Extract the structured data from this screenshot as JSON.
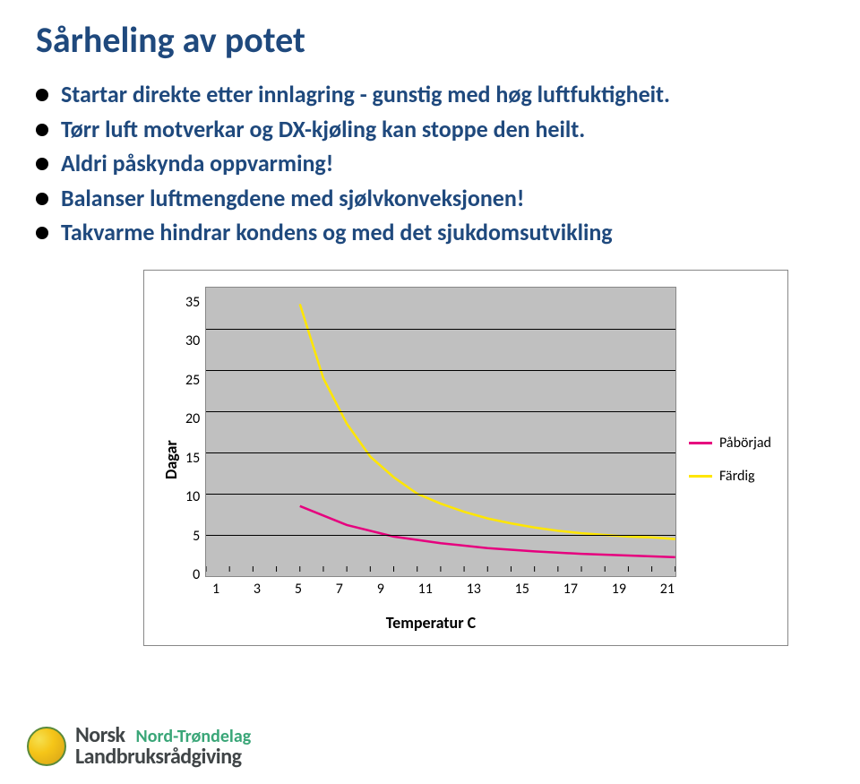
{
  "title": "Sårheling av potet",
  "bullets": [
    "Startar direkte etter innlagring - gunstig med høg luftfuktigheit.",
    "Tørr luft motverkar og DX-kjøling kan stoppe den heilt.",
    "Aldri påskynda oppvarming!",
    "Balanser luftmengdene med sjølvkonveksjonen!",
    "Takvarme hindrar kondens og med det sjukdomsutvikling"
  ],
  "chart": {
    "type": "line",
    "ylabel": "Dagar",
    "xlabel": "Temperatur C",
    "yticks": [
      "35",
      "30",
      "25",
      "20",
      "15",
      "10",
      "5",
      "0"
    ],
    "xticks": [
      "1",
      "3",
      "5",
      "7",
      "9",
      "11",
      "13",
      "15",
      "17",
      "19",
      "21"
    ],
    "xmin": 1,
    "xmax": 21,
    "ymin": 0,
    "ymax": 35,
    "background_color": "#c0c0c0",
    "grid_color": "#000000",
    "series": [
      {
        "name": "Påbörjad",
        "color": "#e6007e",
        "width": 2.5,
        "points": [
          [
            5,
            8.5
          ],
          [
            7,
            6.2
          ],
          [
            9,
            4.8
          ],
          [
            11,
            4.0
          ],
          [
            13,
            3.4
          ],
          [
            15,
            3.0
          ],
          [
            17,
            2.7
          ],
          [
            19,
            2.5
          ],
          [
            21,
            2.3
          ]
        ]
      },
      {
        "name": "Färdig",
        "color": "#ffe600",
        "width": 2.5,
        "points": [
          [
            5,
            33
          ],
          [
            6,
            24
          ],
          [
            7,
            18.5
          ],
          [
            8,
            14.5
          ],
          [
            9,
            12
          ],
          [
            10,
            10
          ],
          [
            11,
            8.8
          ],
          [
            12,
            7.8
          ],
          [
            13,
            7.0
          ],
          [
            14,
            6.4
          ],
          [
            15,
            5.9
          ],
          [
            16,
            5.5
          ],
          [
            17,
            5.2
          ],
          [
            18,
            5.0
          ],
          [
            19,
            4.8
          ],
          [
            20,
            4.7
          ],
          [
            21,
            4.5
          ]
        ]
      }
    ]
  },
  "legend": [
    {
      "label": "Påbörjad",
      "color": "#e6007e"
    },
    {
      "label": "Färdig",
      "color": "#ffe600"
    }
  ],
  "footer": {
    "brand_main": "Norsk",
    "brand_sub": "Landbruksrådgiving",
    "region": "Nord-Trøndelag"
  }
}
